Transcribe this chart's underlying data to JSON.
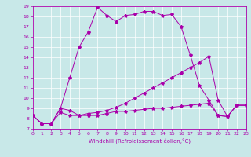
{
  "xlabel": "Windchill (Refroidissement éolien,°C)",
  "background_color": "#c8e8e8",
  "line_color": "#aa00aa",
  "xlim": [
    0,
    23
  ],
  "ylim": [
    7,
    19
  ],
  "xticks": [
    0,
    1,
    2,
    3,
    4,
    5,
    6,
    7,
    8,
    9,
    10,
    11,
    12,
    13,
    14,
    15,
    16,
    17,
    18,
    19,
    20,
    21,
    22,
    23
  ],
  "yticks": [
    7,
    8,
    9,
    10,
    11,
    12,
    13,
    14,
    15,
    16,
    17,
    18,
    19
  ],
  "line1_x": [
    0,
    1,
    2,
    3,
    4,
    5,
    6,
    7,
    8,
    9,
    10,
    11,
    12,
    13,
    14,
    15,
    16,
    17,
    18,
    19,
    20,
    21,
    22,
    23
  ],
  "line1_y": [
    8.3,
    7.5,
    7.5,
    9.0,
    12.0,
    15.0,
    16.5,
    18.9,
    18.1,
    17.5,
    18.1,
    18.2,
    18.5,
    18.5,
    18.1,
    18.2,
    17.0,
    14.2,
    11.2,
    9.8,
    8.3,
    8.2,
    9.3,
    9.3
  ],
  "line2_x": [
    0,
    1,
    2,
    3,
    4,
    5,
    6,
    7,
    8,
    9,
    10,
    11,
    12,
    13,
    14,
    15,
    16,
    17,
    18,
    19,
    20,
    21,
    22,
    23
  ],
  "line2_y": [
    8.3,
    7.5,
    7.5,
    9.0,
    8.8,
    8.3,
    8.5,
    8.6,
    8.8,
    9.1,
    9.5,
    10.0,
    10.5,
    11.0,
    11.5,
    12.0,
    12.5,
    13.0,
    13.5,
    14.1,
    9.8,
    8.2,
    9.3,
    9.3
  ],
  "line3_x": [
    0,
    1,
    2,
    3,
    4,
    5,
    6,
    7,
    8,
    9,
    10,
    11,
    12,
    13,
    14,
    15,
    16,
    17,
    18,
    19,
    20,
    21,
    22,
    23
  ],
  "line3_y": [
    8.3,
    7.5,
    7.5,
    8.6,
    8.3,
    8.3,
    8.3,
    8.3,
    8.5,
    8.7,
    8.7,
    8.8,
    8.9,
    9.0,
    9.0,
    9.1,
    9.2,
    9.3,
    9.4,
    9.5,
    8.3,
    8.2,
    9.3,
    9.3
  ]
}
